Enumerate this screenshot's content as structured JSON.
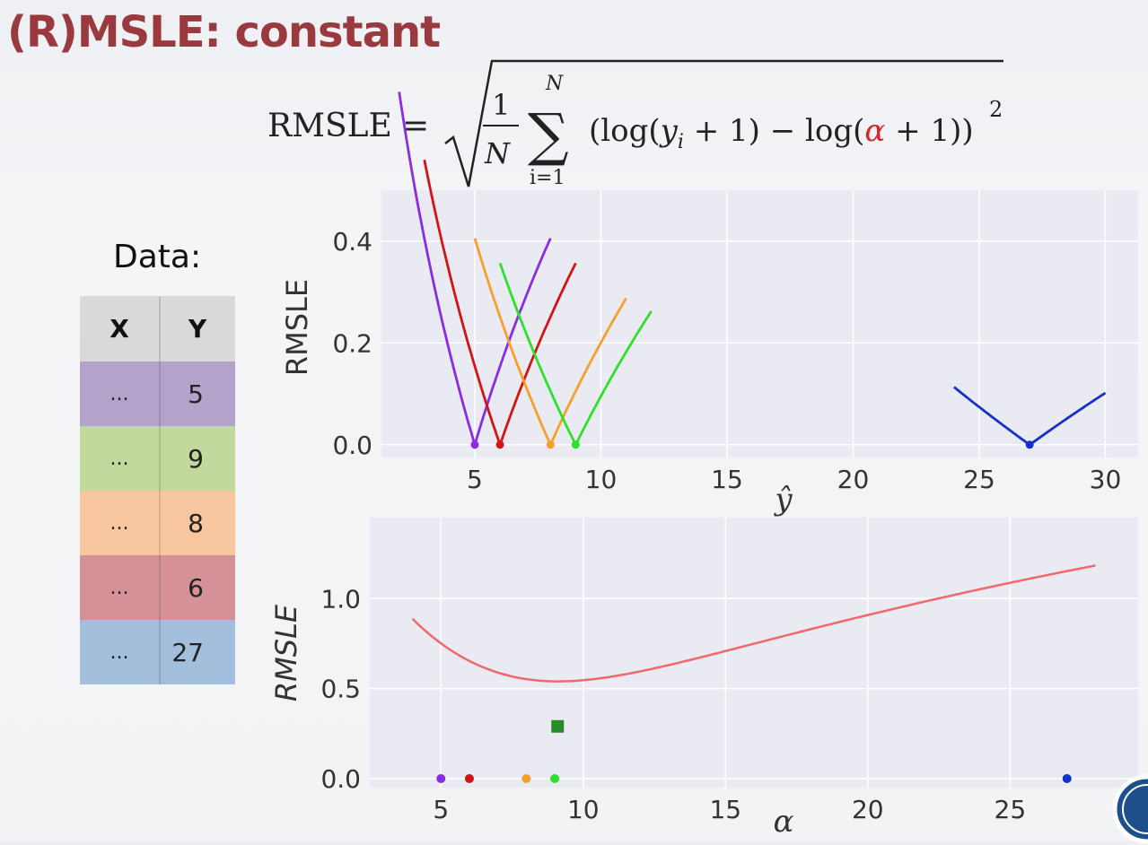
{
  "title": "(R)MSLE: constant",
  "formula": {
    "lhs": "RMSLE",
    "eq": "=",
    "frac_num": "1",
    "frac_den": "N",
    "sum_top": "N",
    "sum_bottom": "i=1",
    "term_a": "(log(",
    "term_y": "y",
    "term_i": "i",
    "term_b": " + 1) − log(",
    "term_alpha": "α",
    "term_c": " + 1))",
    "exponent": "2",
    "alpha_color": "#d62728"
  },
  "data_label": "Data:",
  "table": {
    "headers": [
      "X",
      "Y"
    ],
    "rows": [
      {
        "x": "...",
        "y": "5",
        "color": "#b3a3cb"
      },
      {
        "x": "...",
        "y": "9",
        "color": "#c2d99e"
      },
      {
        "x": "...",
        "y": "8",
        "color": "#f7c59e"
      },
      {
        "x": "...",
        "y": "6",
        "color": "#d59197"
      },
      {
        "x": "...",
        "y": "27",
        "color": "#a3bfdc"
      }
    ]
  },
  "chart_data": [
    {
      "type": "line",
      "ylabel": "RMSLE",
      "xlabel": "ŷ",
      "xlim": [
        1.3,
        31.3
      ],
      "ylim": [
        -0.025,
        0.5
      ],
      "xticks": [
        5,
        10,
        15,
        20,
        25,
        30
      ],
      "yticks": [
        0.0,
        0.2,
        0.4
      ],
      "ytick_labels": [
        "0.0",
        "0.2",
        "0.4"
      ],
      "grid": true,
      "series": [
        {
          "target": 5,
          "color": "#8b2be2",
          "x_range": [
            2,
            8
          ],
          "min_marker": [
            5,
            0
          ]
        },
        {
          "target": 6,
          "color": "#d21414",
          "x_range": [
            3,
            9
          ],
          "min_marker": [
            6,
            0
          ]
        },
        {
          "target": 8,
          "color": "#f6a02c",
          "x_range": [
            5,
            11
          ],
          "min_marker": [
            8,
            0
          ]
        },
        {
          "target": 9,
          "color": "#2ee02e",
          "x_range": [
            6,
            12
          ],
          "min_marker": [
            9,
            0
          ]
        },
        {
          "target": 27,
          "color": "#1432c8",
          "x_range": [
            24,
            30
          ],
          "min_marker": [
            27,
            0
          ]
        }
      ]
    },
    {
      "type": "line",
      "ylabel": "RMSLE",
      "xlabel": "α",
      "xlim": [
        2.5,
        29.5
      ],
      "ylim": [
        -0.05,
        1.45
      ],
      "xticks": [
        5,
        10,
        15,
        20,
        25
      ],
      "yticks": [
        0.0,
        0.5,
        1.0
      ],
      "ytick_labels": [
        "0.0",
        "0.5",
        "1.0"
      ],
      "grid": true,
      "curve": {
        "color": "#f0686c",
        "x_range": [
          4,
          28
        ],
        "targets": [
          5,
          9,
          8,
          6,
          27
        ]
      },
      "minimum": {
        "x": 9.1,
        "y": 0.29,
        "color": "#2a8a2a",
        "marker": "square"
      },
      "points": [
        {
          "x": 5,
          "y": 0,
          "color": "#8b2be2"
        },
        {
          "x": 6,
          "y": 0,
          "color": "#d21414"
        },
        {
          "x": 8,
          "y": 0,
          "color": "#f6a02c"
        },
        {
          "x": 9,
          "y": 0,
          "color": "#2ee02e"
        },
        {
          "x": 27,
          "y": 0,
          "color": "#1432c8"
        }
      ]
    }
  ]
}
